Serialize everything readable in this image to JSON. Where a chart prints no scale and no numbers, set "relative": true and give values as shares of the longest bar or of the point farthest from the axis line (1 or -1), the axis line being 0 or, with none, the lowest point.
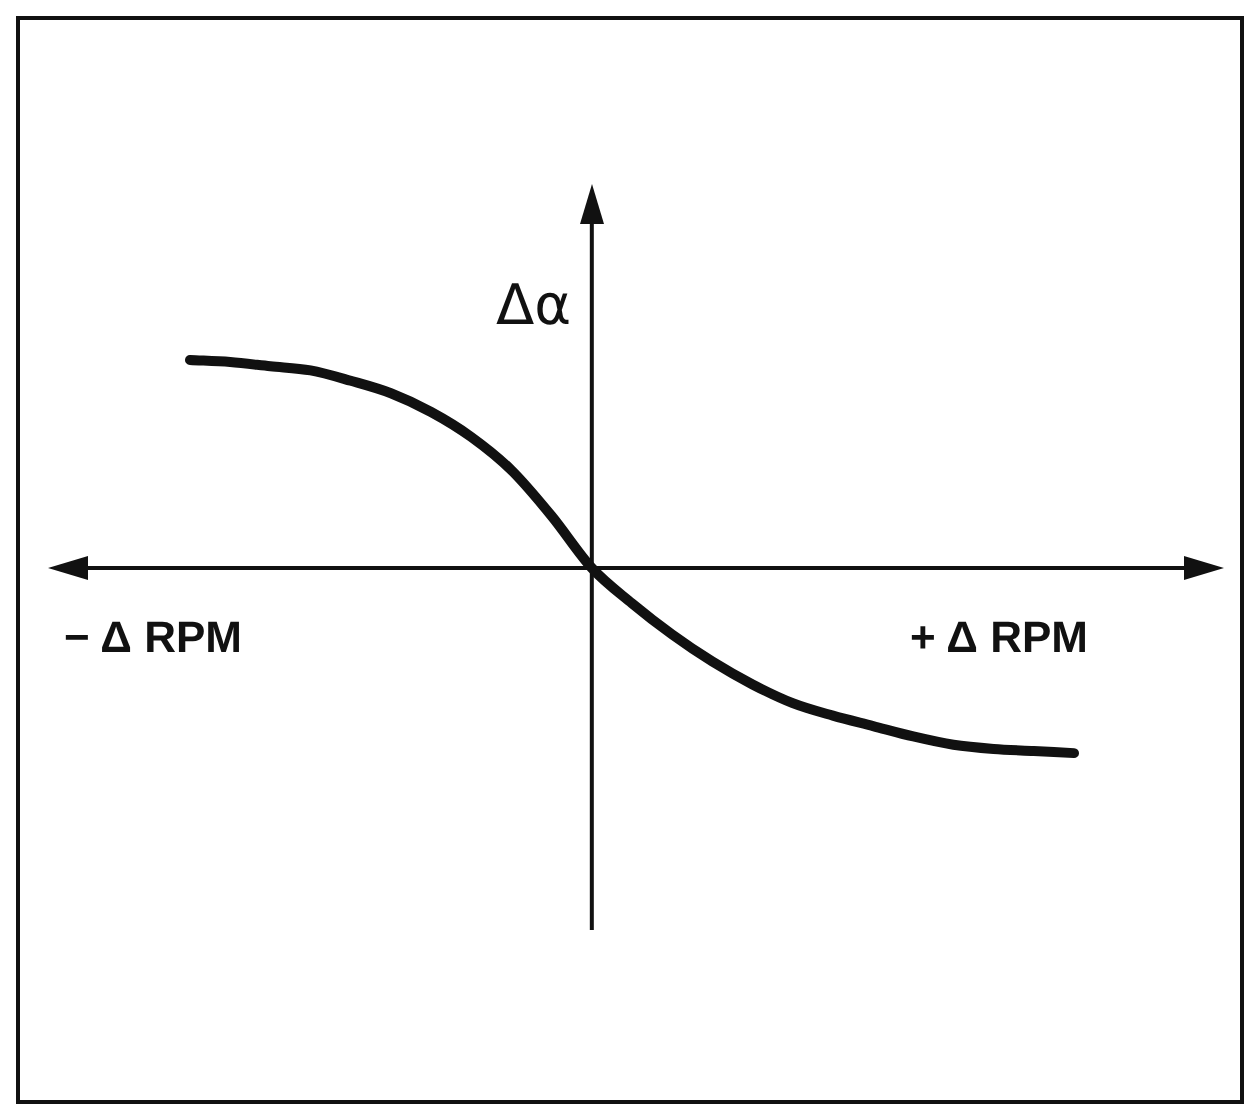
{
  "chart_data": {
    "type": "line",
    "relative": true,
    "ylabel": "Δα",
    "xlabel": "+ Δ RPM",
    "annotations": [
      "− Δ RPM"
    ],
    "marker": "none",
    "categories": [
      null,
      null,
      null,
      null,
      null,
      null,
      null,
      null,
      null,
      null,
      null,
      null,
      null,
      null,
      null,
      null,
      null,
      null,
      null,
      null,
      null,
      null,
      null
    ],
    "series": [
      {
        "color": "#111111",
        "values": [
          1,
          0.99,
          0.97,
          0.95,
          0.9,
          0.84,
          0.75,
          0.63,
          0.47,
          0.25,
          0,
          -0.17,
          -0.32,
          -0.45,
          -0.56,
          -0.65,
          -0.71,
          -0.76,
          -0.81,
          -0.85,
          -0.87,
          -0.88,
          -0.89
        ]
      }
    ]
  }
}
